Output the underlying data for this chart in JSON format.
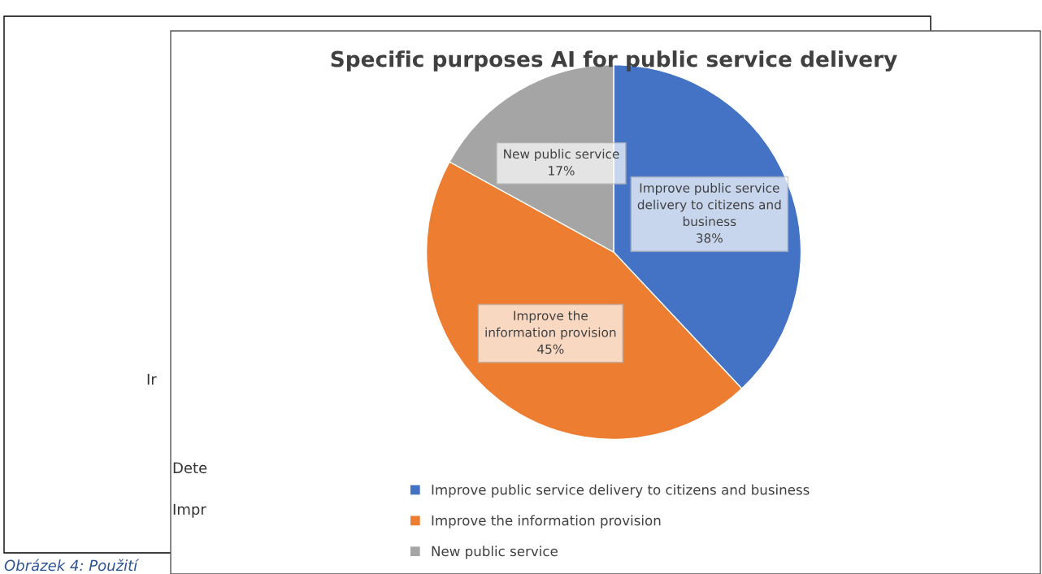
{
  "chart_data": {
    "type": "pie",
    "title": "Specific purposes AI for public service delivery",
    "categories": [
      "Improve public service delivery to citizens and business",
      "Improve the information provision",
      "New public service"
    ],
    "values": [
      38,
      45,
      17
    ],
    "colors": [
      "#4472c4",
      "#ed7d31",
      "#a5a5a5"
    ],
    "value_labels": [
      "Improve public service\ndelivery to citizens and\nbusiness\n38%",
      "Improve the\ninformation provision\n45%",
      "New public service\n17%"
    ],
    "legend": "bottom",
    "annotations": [
      "Ir",
      "Dete",
      "Impr",
      "Obrázek 4: Použití"
    ]
  }
}
